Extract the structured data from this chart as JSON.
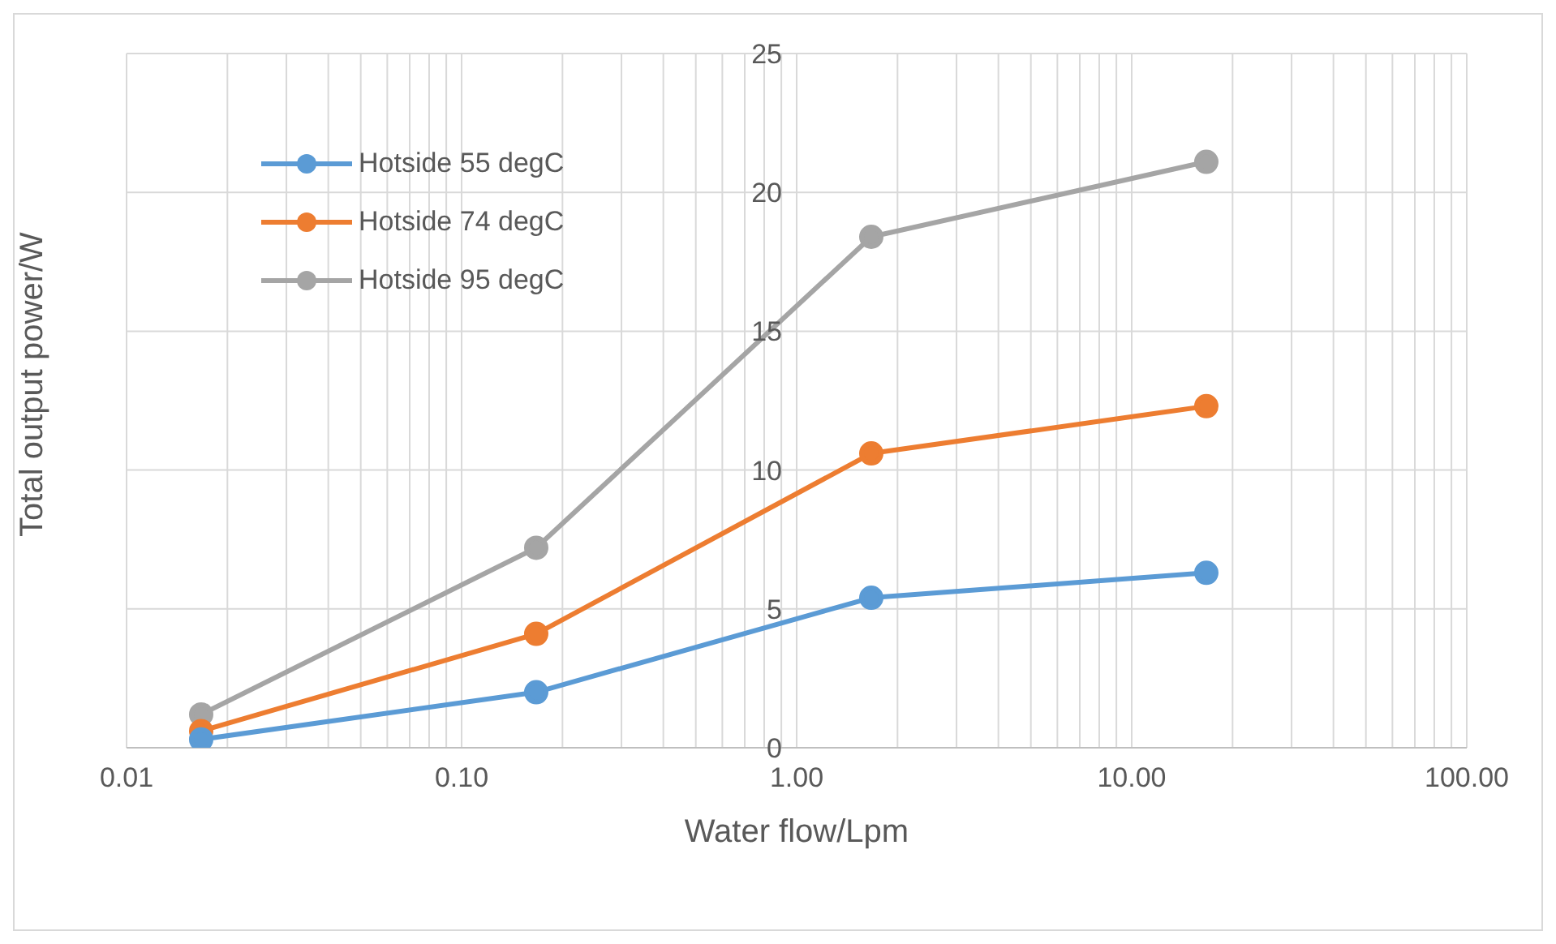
{
  "chart_data": {
    "type": "line",
    "xlabel": "Water flow/Lpm",
    "ylabel": "Total output power/W",
    "log": "x",
    "x": [
      0.0167,
      0.167,
      1.67,
      16.7
    ],
    "series": [
      {
        "name": "Hotside 55 degC",
        "color": "#5b9bd5",
        "values": [
          0.3,
          2.0,
          5.4,
          6.3
        ]
      },
      {
        "name": "Hotside 74 degC",
        "color": "#ed7d31",
        "values": [
          0.6,
          4.1,
          10.6,
          12.3
        ]
      },
      {
        "name": "Hotside 95 degC",
        "color": "#a5a5a5",
        "values": [
          1.2,
          7.2,
          18.4,
          21.1
        ]
      }
    ],
    "xlim": [
      0.01,
      100
    ],
    "xticks": [
      {
        "value": 0.01,
        "label": "0.01"
      },
      {
        "value": 0.02,
        "label": null
      },
      {
        "value": 0.03,
        "label": null
      },
      {
        "value": 0.04,
        "label": null
      },
      {
        "value": 0.05,
        "label": null
      },
      {
        "value": 0.06,
        "label": null
      },
      {
        "value": 0.07,
        "label": null
      },
      {
        "value": 0.08,
        "label": null
      },
      {
        "value": 0.09,
        "label": null
      },
      {
        "value": 0.1,
        "label": "0.10"
      },
      {
        "value": 0.2,
        "label": null
      },
      {
        "value": 0.3,
        "label": null
      },
      {
        "value": 0.4,
        "label": null
      },
      {
        "value": 0.5,
        "label": null
      },
      {
        "value": 0.6,
        "label": null
      },
      {
        "value": 0.7,
        "label": null
      },
      {
        "value": 0.8,
        "label": null
      },
      {
        "value": 0.9,
        "label": null
      },
      {
        "value": 1,
        "label": "1.00"
      },
      {
        "value": 2,
        "label": null
      },
      {
        "value": 3,
        "label": null
      },
      {
        "value": 4,
        "label": null
      },
      {
        "value": 5,
        "label": null
      },
      {
        "value": 6,
        "label": null
      },
      {
        "value": 7,
        "label": null
      },
      {
        "value": 8,
        "label": null
      },
      {
        "value": 9,
        "label": null
      },
      {
        "value": 10,
        "label": "10.00"
      },
      {
        "value": 20,
        "label": null
      },
      {
        "value": 30,
        "label": null
      },
      {
        "value": 40,
        "label": null
      },
      {
        "value": 50,
        "label": null
      },
      {
        "value": 60,
        "label": null
      },
      {
        "value": 70,
        "label": null
      },
      {
        "value": 80,
        "label": null
      },
      {
        "value": 90,
        "label": null
      },
      {
        "value": 100,
        "label": "100.00"
      }
    ],
    "ylim": [
      0,
      25
    ],
    "yticks": [
      0,
      5,
      10,
      15,
      20,
      25
    ],
    "grid": true,
    "legend": "top left",
    "marker": "circle",
    "line_style": "solid"
  }
}
